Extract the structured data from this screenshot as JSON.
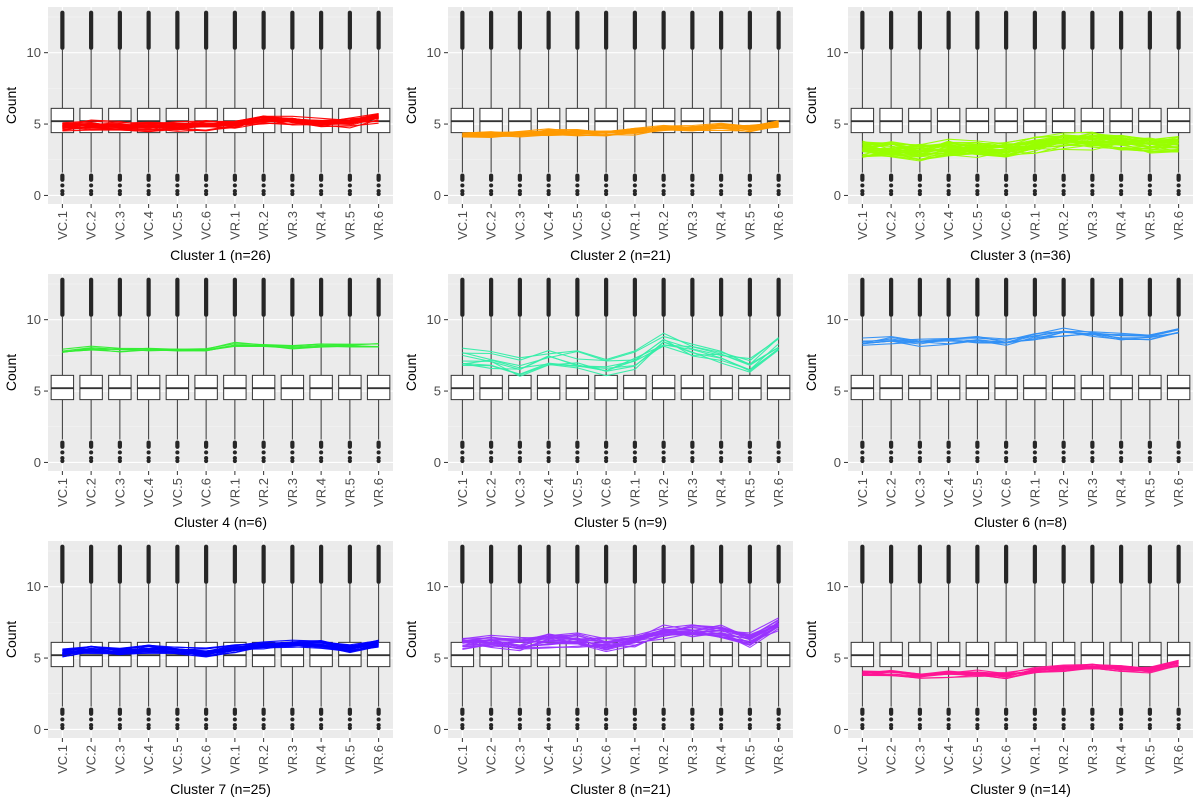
{
  "chart_data": {
    "type": "boxplot+line",
    "ylabel": "Count",
    "ylim": [
      -0.6,
      13.2
    ],
    "y_ticks": [
      0,
      5,
      10
    ],
    "x_categories": [
      "VC.1",
      "VC.2",
      "VC.3",
      "VC.4",
      "VC.5",
      "VC.6",
      "VR.1",
      "VR.2",
      "VR.3",
      "VR.4",
      "VR.5",
      "VR.6"
    ],
    "grid": true,
    "boxplot": {
      "q1": 4.4,
      "median": 5.2,
      "q3": 6.1,
      "whisker_low": 1.6,
      "whisker_high": 10.2,
      "outlier_min": 0.1,
      "outlier_max": 12.8
    },
    "panels": [
      {
        "title": "Cluster 1 (n=26)",
        "color": "#ff0000",
        "n": 26,
        "mean": [
          4.8,
          4.9,
          4.8,
          4.8,
          4.8,
          4.9,
          5.0,
          5.3,
          5.2,
          5.1,
          5.1,
          5.4
        ],
        "spread": 0.45
      },
      {
        "title": "Cluster 2 (n=21)",
        "color": "#ff9a00",
        "n": 21,
        "mean": [
          4.2,
          4.3,
          4.3,
          4.4,
          4.4,
          4.4,
          4.5,
          4.7,
          4.7,
          4.8,
          4.7,
          5.0
        ],
        "spread": 0.3
      },
      {
        "title": "Cluster 3 (n=36)",
        "color": "#99ff00",
        "n": 36,
        "mean": [
          3.2,
          3.2,
          3.0,
          3.3,
          3.2,
          3.2,
          3.5,
          3.8,
          3.8,
          3.7,
          3.5,
          3.6
        ],
        "spread": 0.7
      },
      {
        "title": "Cluster 4 (n=6)",
        "color": "#33ee33",
        "n": 6,
        "mean": [
          7.8,
          8.0,
          7.9,
          7.9,
          7.9,
          7.9,
          8.3,
          8.2,
          8.1,
          8.2,
          8.2,
          8.2
        ],
        "spread": 0.2
      },
      {
        "title": "Cluster 5 (n=9)",
        "color": "#33eea8",
        "n": 9,
        "mean": [
          7.4,
          7.1,
          6.6,
          7.4,
          7.2,
          6.8,
          7.2,
          8.6,
          8.0,
          7.5,
          6.9,
          8.2
        ],
        "spread": 0.8
      },
      {
        "title": "Cluster 6 (n=8)",
        "color": "#2f8ff5",
        "n": 8,
        "mean": [
          8.5,
          8.7,
          8.5,
          8.6,
          8.6,
          8.5,
          8.9,
          9.2,
          9.1,
          8.9,
          8.9,
          9.4
        ],
        "spread": 0.45
      },
      {
        "title": "Cluster 7 (n=25)",
        "color": "#0000ff",
        "n": 25,
        "mean": [
          5.4,
          5.6,
          5.4,
          5.6,
          5.5,
          5.4,
          5.7,
          5.9,
          6.0,
          6.0,
          5.7,
          6.0
        ],
        "spread": 0.35
      },
      {
        "title": "Cluster 8 (n=21)",
        "color": "#9933ff",
        "n": 21,
        "mean": [
          6.1,
          6.2,
          6.0,
          6.3,
          6.3,
          6.0,
          6.3,
          6.9,
          6.9,
          6.8,
          6.3,
          7.4
        ],
        "spread": 0.65
      },
      {
        "title": "Cluster 9 (n=14)",
        "color": "#ff1493",
        "n": 14,
        "mean": [
          3.9,
          4.0,
          3.8,
          3.9,
          3.9,
          3.8,
          4.1,
          4.3,
          4.4,
          4.3,
          4.2,
          4.7
        ],
        "spread": 0.3
      }
    ]
  }
}
